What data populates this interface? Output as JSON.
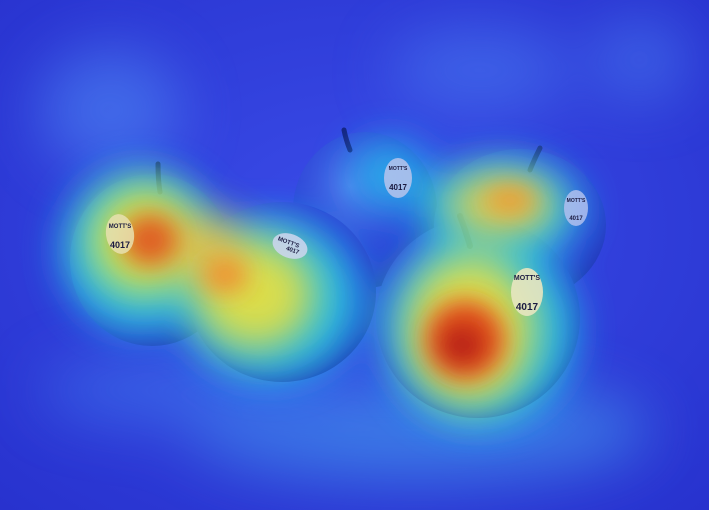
{
  "photo": {
    "subject": "apples-with-saliency-heatmap",
    "colors": {
      "background": "#2f3fe0",
      "heat_low": "#2a36d8",
      "heat_mid": "#24d3e8",
      "heat_warm": "#f0e23a",
      "heat_hot": "#e0381c",
      "heat_peak": "#a01010"
    }
  },
  "stickers": [
    {
      "brand": "MOTT'S",
      "code": "4017"
    },
    {
      "brand": "MOTT'S",
      "code": "4017"
    },
    {
      "brand": "MOTT'S",
      "code": "4017"
    },
    {
      "brand": "MOTT'S",
      "code": "4017"
    },
    {
      "brand": "MOTT'S",
      "code": "4017"
    }
  ]
}
